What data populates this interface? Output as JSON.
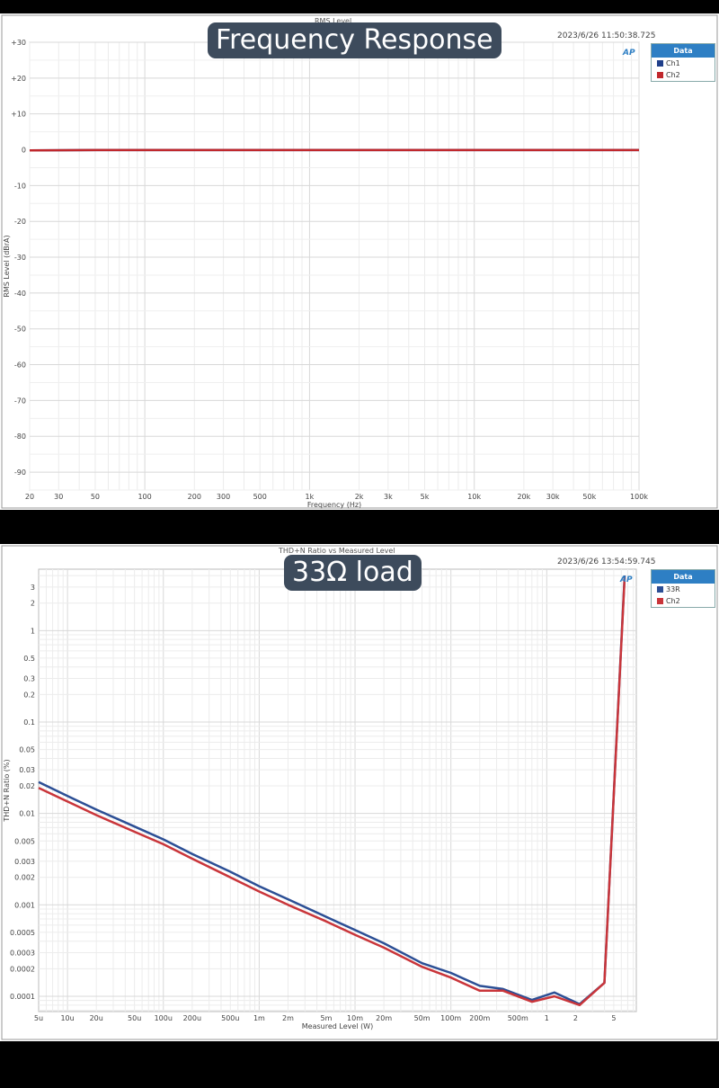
{
  "chart_data": [
    {
      "type": "line",
      "title": "RMS Level",
      "overlay_label": "Frequency Response",
      "timestamp": "2023/6/26 11:50:38.725",
      "xlabel": "Frequency (Hz)",
      "ylabel": "RMS Level (dBrA)",
      "xscale": "log",
      "xlim": [
        20,
        100000
      ],
      "ylim": [
        -95,
        30
      ],
      "grid": true,
      "legend": {
        "title": "Data",
        "placement": "right"
      },
      "x_ticks": [
        20,
        30,
        50,
        100,
        200,
        300,
        500,
        1000,
        2000,
        3000,
        5000,
        10000,
        20000,
        30000,
        50000,
        100000
      ],
      "x_tick_labels": [
        "20",
        "30",
        "50",
        "100",
        "200",
        "300",
        "500",
        "1k",
        "2k",
        "3k",
        "5k",
        "10k",
        "20k",
        "30k",
        "50k",
        "100k"
      ],
      "y_ticks": [
        30,
        20,
        10,
        0,
        -10,
        -20,
        -30,
        -40,
        -50,
        -60,
        -70,
        -80,
        -90
      ],
      "y_tick_labels": [
        "+30",
        "+20",
        "+10",
        "0",
        "-10",
        "-20",
        "-30",
        "-40",
        "-50",
        "-60",
        "-70",
        "-80",
        "-90"
      ],
      "series": [
        {
          "name": "Ch1",
          "color": "#1f3f8a",
          "x": [
            20,
            50,
            100,
            1000,
            10000,
            100000
          ],
          "y": [
            -0.2,
            -0.1,
            -0.1,
            -0.1,
            -0.1,
            -0.1
          ]
        },
        {
          "name": "Ch2",
          "color": "#c0282d",
          "x": [
            20,
            50,
            100,
            1000,
            10000,
            100000
          ],
          "y": [
            -0.2,
            -0.1,
            -0.1,
            -0.1,
            -0.1,
            -0.1
          ]
        }
      ]
    },
    {
      "type": "line",
      "title": "THD+N Ratio vs Measured Level",
      "overlay_label": "33Ω load",
      "timestamp": "2023/6/26 13:54:59.745",
      "xlabel": "Measured Level (W)",
      "ylabel": "THD+N Ratio (%)",
      "xscale": "log",
      "yscale": "log",
      "xlim": [
        5e-06,
        8.6
      ],
      "ylim": [
        6.8e-05,
        4.7
      ],
      "grid": true,
      "legend": {
        "title": "Data",
        "placement": "right"
      },
      "x_ticks": [
        5e-06,
        1e-05,
        2e-05,
        5e-05,
        0.0001,
        0.0002,
        0.0005,
        0.001,
        0.002,
        0.005,
        0.01,
        0.02,
        0.05,
        0.1,
        0.2,
        0.5,
        1,
        2,
        5
      ],
      "x_tick_labels": [
        "5u",
        "10u",
        "20u",
        "50u",
        "100u",
        "200u",
        "500u",
        "1m",
        "2m",
        "5m",
        "10m",
        "20m",
        "50m",
        "100m",
        "200m",
        "500m",
        "1",
        "2",
        "5"
      ],
      "y_ticks": [
        3,
        2,
        1,
        0.5,
        0.3,
        0.2,
        0.1,
        0.05,
        0.03,
        0.02,
        0.01,
        0.005,
        0.003,
        0.002,
        0.001,
        0.0005,
        0.0003,
        0.0002,
        0.0001
      ],
      "y_tick_labels": [
        "3",
        "2",
        "1",
        "0.5",
        "0.3",
        "0.2",
        "0.1",
        "0.05",
        "0.03",
        "0.02",
        "0.01",
        "0.005",
        "0.003",
        "0.002",
        "0.001",
        "0.0005",
        "0.0003",
        "0.0002",
        "0.0001"
      ],
      "series": [
        {
          "name": "33R",
          "color": "#2c4f95",
          "x": [
            5e-06,
            1e-05,
            2e-05,
            5e-05,
            0.0001,
            0.0002,
            0.0005,
            0.001,
            0.002,
            0.005,
            0.01,
            0.02,
            0.05,
            0.1,
            0.2,
            0.35,
            0.7,
            1.2,
            2.2,
            4,
            6.5
          ],
          "y": [
            0.022,
            0.0155,
            0.011,
            0.0072,
            0.0052,
            0.0036,
            0.0023,
            0.0016,
            0.00115,
            0.00074,
            0.00053,
            0.00038,
            0.00023,
            0.00018,
            0.00013,
            0.00012,
            9.1e-05,
            0.00011,
            8.2e-05,
            0.00014,
            4
          ]
        },
        {
          "name": "Ch2",
          "color": "#c9353a",
          "x": [
            5e-06,
            1e-05,
            2e-05,
            5e-05,
            0.0001,
            0.0002,
            0.0005,
            0.001,
            0.002,
            0.005,
            0.01,
            0.02,
            0.05,
            0.1,
            0.2,
            0.35,
            0.7,
            1.2,
            2.2,
            4,
            6.5
          ],
          "y": [
            0.019,
            0.0135,
            0.0096,
            0.0063,
            0.0046,
            0.0032,
            0.002,
            0.0014,
            0.001,
            0.00066,
            0.00047,
            0.00034,
            0.00021,
            0.00016,
            0.000115,
            0.000115,
            8.7e-05,
            0.0001,
            8e-05,
            0.00014,
            3.8
          ]
        }
      ]
    }
  ]
}
